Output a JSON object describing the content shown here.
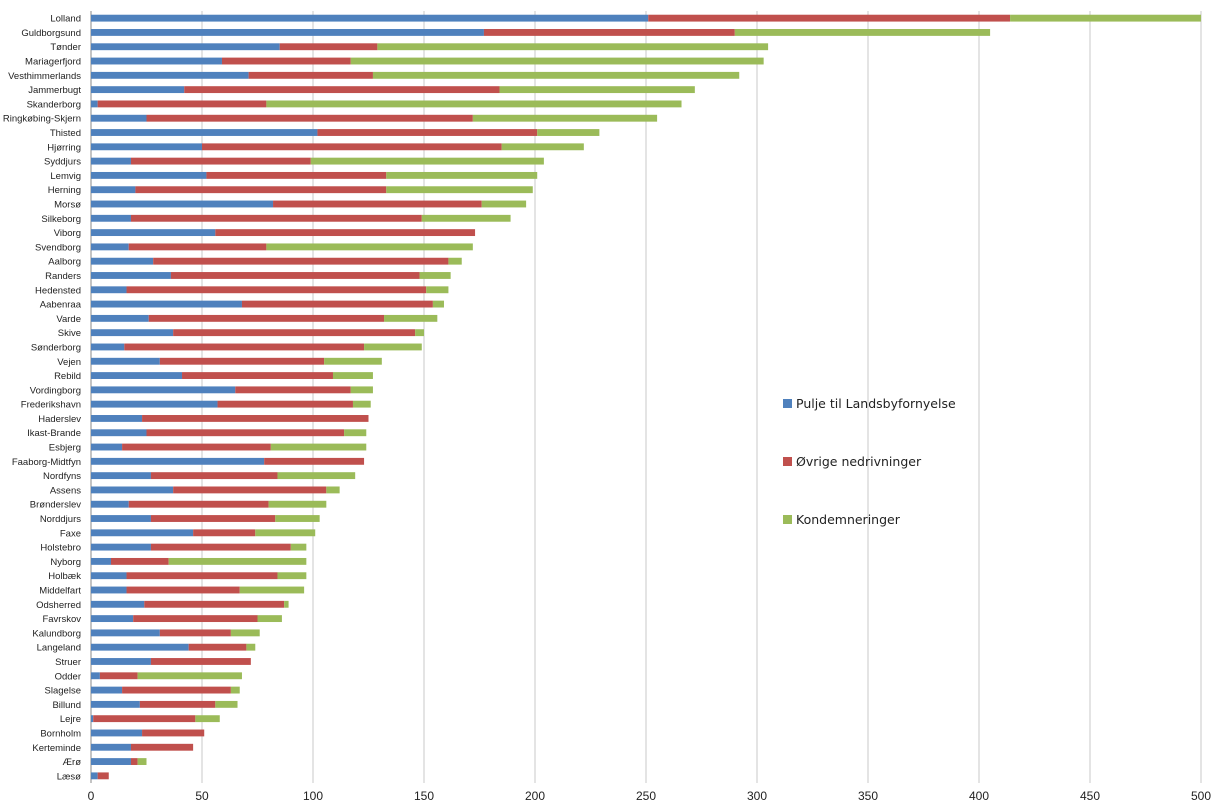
{
  "chart_data": {
    "type": "bar",
    "orientation": "horizontal",
    "stacked": true,
    "title": "",
    "xlabel": "",
    "ylabel": "",
    "xlim": [
      0,
      500
    ],
    "xticks": [
      0,
      50,
      100,
      150,
      200,
      250,
      300,
      350,
      400,
      450,
      500
    ],
    "grid": "vertical",
    "legend_position": "right-center",
    "categories": [
      "Lolland",
      "Guldborgsund",
      "Tønder",
      "Mariagerfjord",
      "Vesthimmerlands",
      "Jammerbugt",
      "Skanderborg",
      "Ringkøbing-Skjern",
      "Thisted",
      "Hjørring",
      "Syddjurs",
      "Lemvig",
      "Herning",
      "Morsø",
      "Silkeborg",
      "Viborg",
      "Svendborg",
      "Aalborg",
      "Randers",
      "Hedensted",
      "Aabenraa",
      "Varde",
      "Skive",
      "Sønderborg",
      "Vejen",
      "Rebild",
      "Vordingborg",
      "Frederikshavn",
      "Haderslev",
      "Ikast-Brande",
      "Esbjerg",
      "Faaborg-Midtfyn",
      "Nordfyns",
      "Assens",
      "Brønderslev",
      "Norddjurs",
      "Faxe",
      "Holstebro",
      "Nyborg",
      "Holbæk",
      "Middelfart",
      "Odsherred",
      "Favrskov",
      "Kalundborg",
      "Langeland",
      "Struer",
      "Odder",
      "Slagelse",
      "Billund",
      "Lejre",
      "Bornholm",
      "Kerteminde",
      "Ærø",
      "Læsø"
    ],
    "series": [
      {
        "name": "Pulje til Landsbyfornyelse",
        "color": "#4f81bd",
        "values": [
          251,
          177,
          85,
          59,
          71,
          42,
          3,
          25,
          102,
          50,
          18,
          52,
          20,
          82,
          18,
          56,
          17,
          28,
          36,
          16,
          68,
          26,
          37,
          15,
          31,
          41,
          65,
          57,
          23,
          25,
          14,
          78,
          27,
          37,
          17,
          27,
          46,
          27,
          9,
          16,
          16,
          24,
          19,
          31,
          44,
          27,
          4,
          14,
          22,
          1,
          23,
          18,
          18,
          3
        ]
      },
      {
        "name": "Øvrige nedrivninger",
        "color": "#c0504d",
        "values": [
          163,
          113,
          44,
          58,
          56,
          142,
          76,
          147,
          99,
          135,
          81,
          81,
          113,
          94,
          131,
          117,
          62,
          133,
          112,
          135,
          86,
          106,
          109,
          108,
          74,
          68,
          52,
          61,
          102,
          89,
          67,
          45,
          57,
          69,
          63,
          56,
          28,
          63,
          26,
          68,
          51,
          63,
          56,
          32,
          26,
          45,
          17,
          49,
          34,
          46,
          28,
          28,
          3,
          5
        ]
      },
      {
        "name": "Kondemneringer",
        "color": "#9bbb59",
        "values": [
          86,
          115,
          176,
          186,
          165,
          88,
          187,
          83,
          28,
          37,
          105,
          68,
          66,
          20,
          40,
          0,
          93,
          6,
          14,
          10,
          5,
          24,
          4,
          26,
          26,
          18,
          10,
          8,
          0,
          10,
          43,
          0,
          35,
          6,
          26,
          20,
          27,
          7,
          62,
          13,
          29,
          2,
          11,
          13,
          4,
          0,
          47,
          4,
          10,
          11,
          0,
          0,
          4,
          0
        ]
      }
    ]
  }
}
